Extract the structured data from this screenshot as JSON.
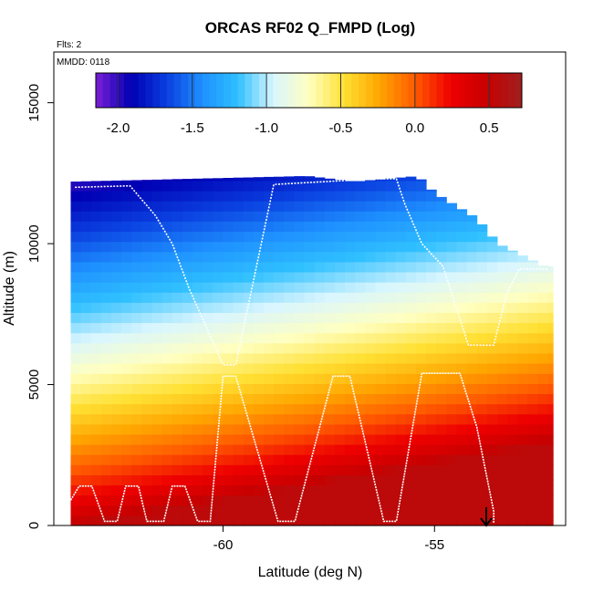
{
  "chart_data": {
    "type": "heatmap",
    "title": "ORCAS RF02 Q_FMPD (Log)",
    "xlabel": "Latitude (deg N)",
    "ylabel": "Altitude (m)",
    "flights_note": "Flts: 2",
    "date_note": "MMDD: 0118",
    "xlim": [
      -64.0,
      -51.9
    ],
    "ylim": [
      0,
      16800
    ],
    "x_ticks": [
      -60,
      -55
    ],
    "y_ticks": [
      0,
      5000,
      10000,
      15000
    ],
    "colorbar": {
      "range": [
        -2.15,
        0.72
      ],
      "ticks": [
        -2.0,
        -1.5,
        -1.0,
        -0.5,
        0.0,
        0.5
      ],
      "tick_labels": [
        "-2.0",
        "-1.5",
        "-1.0",
        "-0.5",
        "0.0",
        "0.5"
      ],
      "colors": [
        "#7b1fd6",
        "#0000b4",
        "#0a3fe0",
        "#1e90ff",
        "#2fc0ff",
        "#d9f6ff",
        "#ffffc0",
        "#ffe033",
        "#ffa500",
        "#ff5a00",
        "#ee0000",
        "#c80000",
        "#a02020"
      ]
    },
    "field_description": {
      "value_at_surface": 0.55,
      "value_at_top": -2.0,
      "extent_top_altitude_by_latitude": [
        [
          -63.6,
          12200
        ],
        [
          -58.0,
          12400
        ],
        [
          -56.9,
          12200
        ],
        [
          -55.4,
          12400
        ],
        [
          -55.0,
          11800
        ],
        [
          -54.0,
          10900
        ],
        [
          -53.5,
          10000
        ],
        [
          -52.4,
          9200
        ],
        [
          -52.2,
          9200
        ]
      ],
      "extent_bottom": 0,
      "left_edge_latitude": -63.6,
      "right_edge_latitude": -52.2
    },
    "series": [
      {
        "color": "#ffffff",
        "points": [
          [
            -63.6,
            900
          ],
          [
            -63.4,
            1400
          ],
          [
            -63.1,
            1400
          ],
          [
            -62.8,
            150
          ],
          [
            -62.5,
            150
          ],
          [
            -62.3,
            1400
          ],
          [
            -62.0,
            1400
          ],
          [
            -61.8,
            150
          ],
          [
            -61.4,
            150
          ],
          [
            -61.2,
            1400
          ],
          [
            -60.9,
            1400
          ],
          [
            -60.6,
            150
          ],
          [
            -60.3,
            150
          ],
          [
            -60.0,
            5300
          ],
          [
            -59.7,
            5300
          ],
          [
            -58.7,
            150
          ],
          [
            -58.3,
            150
          ],
          [
            -57.4,
            5300
          ],
          [
            -57.0,
            5300
          ],
          [
            -56.2,
            150
          ],
          [
            -55.9,
            150
          ],
          [
            -55.3,
            5400
          ],
          [
            -54.9,
            5400
          ],
          [
            -54.4,
            5400
          ],
          [
            -54.0,
            3500
          ],
          [
            -53.6,
            500
          ],
          [
            -53.6,
            100
          ]
        ]
      },
      {
        "color": "#ffffff",
        "points": [
          [
            -63.5,
            12000
          ],
          [
            -62.2,
            12050
          ],
          [
            -61.6,
            11000
          ],
          [
            -61.2,
            10000
          ],
          [
            -60.8,
            8400
          ],
          [
            -60.0,
            5700
          ],
          [
            -59.7,
            5700
          ],
          [
            -58.8,
            12100
          ],
          [
            -57.6,
            12200
          ],
          [
            -56.4,
            12300
          ],
          [
            -55.9,
            12300
          ],
          [
            -55.7,
            11400
          ],
          [
            -55.3,
            10000
          ],
          [
            -54.8,
            9200
          ],
          [
            -54.2,
            6400
          ],
          [
            -53.6,
            6400
          ],
          [
            -53.3,
            8200
          ],
          [
            -53.0,
            9100
          ],
          [
            -52.5,
            9100
          ],
          [
            -52.3,
            9100
          ]
        ]
      }
    ]
  }
}
